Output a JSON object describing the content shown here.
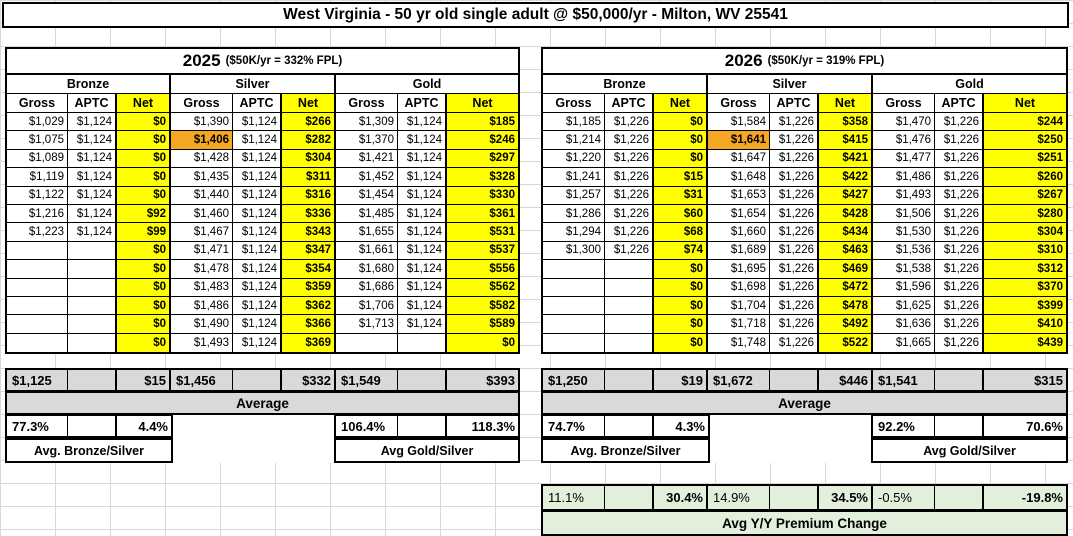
{
  "title": "West Virginia - 50 yr old single adult @ $50,000/yr - Milton, WV 25541",
  "colors": {
    "net_column": "#FFFF00",
    "selected_cell": "#F5A623",
    "summary_row": "#D9D9D9",
    "yoy_section": "#E2EFDA"
  },
  "tables": [
    {
      "year": "2025",
      "fpl_note": "($50K/yr = 332% FPL)",
      "groups": [
        "Bronze",
        "Silver",
        "Gold"
      ],
      "col_headers": [
        "Gross",
        "APTC",
        "Net"
      ],
      "highlight": {
        "row": 1,
        "col": 3,
        "value": "$1,406"
      },
      "rows": [
        [
          "$1,029",
          "$1,124",
          "$0",
          "$1,390",
          "$1,124",
          "$266",
          "$1,309",
          "$1,124",
          "$185"
        ],
        [
          "$1,075",
          "$1,124",
          "$0",
          "$1,406",
          "$1,124",
          "$282",
          "$1,370",
          "$1,124",
          "$246"
        ],
        [
          "$1,089",
          "$1,124",
          "$0",
          "$1,428",
          "$1,124",
          "$304",
          "$1,421",
          "$1,124",
          "$297"
        ],
        [
          "$1,119",
          "$1,124",
          "$0",
          "$1,435",
          "$1,124",
          "$311",
          "$1,452",
          "$1,124",
          "$328"
        ],
        [
          "$1,122",
          "$1,124",
          "$0",
          "$1,440",
          "$1,124",
          "$316",
          "$1,454",
          "$1,124",
          "$330"
        ],
        [
          "$1,216",
          "$1,124",
          "$92",
          "$1,460",
          "$1,124",
          "$336",
          "$1,485",
          "$1,124",
          "$361"
        ],
        [
          "$1,223",
          "$1,124",
          "$99",
          "$1,467",
          "$1,124",
          "$343",
          "$1,655",
          "$1,124",
          "$531"
        ],
        [
          "",
          "",
          "$0",
          "$1,471",
          "$1,124",
          "$347",
          "$1,661",
          "$1,124",
          "$537"
        ],
        [
          "",
          "",
          "$0",
          "$1,478",
          "$1,124",
          "$354",
          "$1,680",
          "$1,124",
          "$556"
        ],
        [
          "",
          "",
          "$0",
          "$1,483",
          "$1,124",
          "$359",
          "$1,686",
          "$1,124",
          "$562"
        ],
        [
          "",
          "",
          "$0",
          "$1,486",
          "$1,124",
          "$362",
          "$1,706",
          "$1,124",
          "$582"
        ],
        [
          "",
          "",
          "$0",
          "$1,490",
          "$1,124",
          "$366",
          "$1,713",
          "$1,124",
          "$589"
        ],
        [
          "",
          "",
          "$0",
          "$1,493",
          "$1,124",
          "$369",
          "",
          "",
          "$0"
        ]
      ],
      "summary": {
        "avg": [
          "$1,125",
          "",
          "$15",
          "$1,456",
          "",
          "$332",
          "$1,549",
          "",
          "$393"
        ],
        "average_label": "Average",
        "ratios": [
          "77.3%",
          "",
          "4.4%",
          "",
          "",
          "",
          "106.4%",
          "",
          "118.3%"
        ],
        "bronze_silver_label": "Avg. Bronze/Silver",
        "gold_silver_label": "Avg Gold/Silver"
      }
    },
    {
      "year": "2026",
      "fpl_note": "($50K/yr = 319% FPL)",
      "groups": [
        "Bronze",
        "Silver",
        "Gold"
      ],
      "col_headers": [
        "Gross",
        "APTC",
        "Net"
      ],
      "highlight": {
        "row": 1,
        "col": 3,
        "value": "$1,641"
      },
      "rows": [
        [
          "$1,185",
          "$1,226",
          "$0",
          "$1,584",
          "$1,226",
          "$358",
          "$1,470",
          "$1,226",
          "$244"
        ],
        [
          "$1,214",
          "$1,226",
          "$0",
          "$1,641",
          "$1,226",
          "$415",
          "$1,476",
          "$1,226",
          "$250"
        ],
        [
          "$1,220",
          "$1,226",
          "$0",
          "$1,647",
          "$1,226",
          "$421",
          "$1,477",
          "$1,226",
          "$251"
        ],
        [
          "$1,241",
          "$1,226",
          "$15",
          "$1,648",
          "$1,226",
          "$422",
          "$1,486",
          "$1,226",
          "$260"
        ],
        [
          "$1,257",
          "$1,226",
          "$31",
          "$1,653",
          "$1,226",
          "$427",
          "$1,493",
          "$1,226",
          "$267"
        ],
        [
          "$1,286",
          "$1,226",
          "$60",
          "$1,654",
          "$1,226",
          "$428",
          "$1,506",
          "$1,226",
          "$280"
        ],
        [
          "$1,294",
          "$1,226",
          "$68",
          "$1,660",
          "$1,226",
          "$434",
          "$1,530",
          "$1,226",
          "$304"
        ],
        [
          "$1,300",
          "$1,226",
          "$74",
          "$1,689",
          "$1,226",
          "$463",
          "$1,536",
          "$1,226",
          "$310"
        ],
        [
          "",
          "",
          "$0",
          "$1,695",
          "$1,226",
          "$469",
          "$1,538",
          "$1,226",
          "$312"
        ],
        [
          "",
          "",
          "$0",
          "$1,698",
          "$1,226",
          "$472",
          "$1,596",
          "$1,226",
          "$370"
        ],
        [
          "",
          "",
          "$0",
          "$1,704",
          "$1,226",
          "$478",
          "$1,625",
          "$1,226",
          "$399"
        ],
        [
          "",
          "",
          "$0",
          "$1,718",
          "$1,226",
          "$492",
          "$1,636",
          "$1,226",
          "$410"
        ],
        [
          "",
          "",
          "$0",
          "$1,748",
          "$1,226",
          "$522",
          "$1,665",
          "$1,226",
          "$439"
        ]
      ],
      "summary": {
        "avg": [
          "$1,250",
          "",
          "$19",
          "$1,672",
          "",
          "$446",
          "$1,541",
          "",
          "$315"
        ],
        "average_label": "Average",
        "ratios": [
          "74.7%",
          "",
          "4.3%",
          "",
          "",
          "",
          "92.2%",
          "",
          "70.6%"
        ],
        "bronze_silver_label": "Avg. Bronze/Silver",
        "gold_silver_label": "Avg Gold/Silver"
      }
    }
  ],
  "yoy": {
    "values": [
      "11.1%",
      "",
      "30.4%",
      "14.9%",
      "",
      "34.5%",
      "-0.5%",
      "",
      "-19.8%"
    ],
    "label": "Avg Y/Y Premium Change"
  }
}
